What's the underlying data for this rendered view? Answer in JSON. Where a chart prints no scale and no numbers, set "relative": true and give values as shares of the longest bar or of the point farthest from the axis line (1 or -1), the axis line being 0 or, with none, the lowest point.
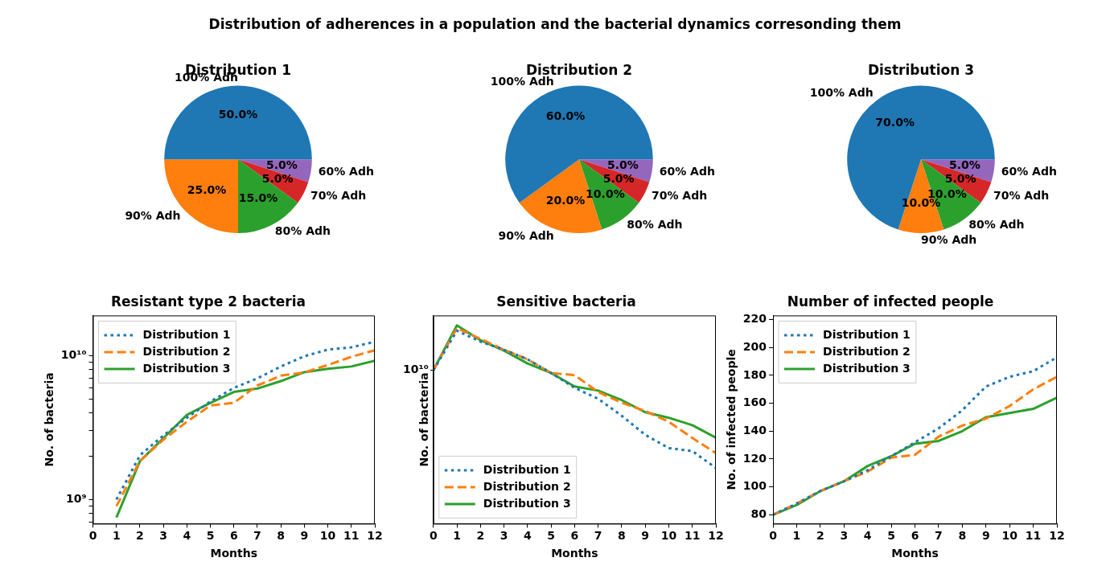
{
  "chart_data": [
    {
      "type": "other",
      "title": "Distribution of adherences in a population and the bacterial dynamics corresonding them"
    },
    {
      "type": "pie",
      "title": "Distribution 1",
      "categories": [
        "100% Adh",
        "90% Adh",
        "80% Adh",
        "70% Adh",
        "60% Adh"
      ],
      "values": [
        50,
        25,
        15,
        5,
        5
      ],
      "colors": [
        "#1f77b4",
        "#ff7f0e",
        "#2ca02c",
        "#d62728",
        "#9467bd"
      ],
      "value_labels": [
        "50.0%",
        "25.0%",
        "15.0%",
        "5.0%",
        "5.0%"
      ]
    },
    {
      "type": "pie",
      "title": "Distribution 2",
      "categories": [
        "100% Adh",
        "90% Adh",
        "80% Adh",
        "70% Adh",
        "60% Adh"
      ],
      "values": [
        60,
        20,
        10,
        5,
        5
      ],
      "colors": [
        "#1f77b4",
        "#ff7f0e",
        "#2ca02c",
        "#d62728",
        "#9467bd"
      ],
      "value_labels": [
        "60.0%",
        "20.0%",
        "10.0%",
        "5.0%",
        "5.0%"
      ]
    },
    {
      "type": "pie",
      "title": "Distribution 3",
      "categories": [
        "100% Adh",
        "90% Adh",
        "80% Adh",
        "70% Adh",
        "60% Adh"
      ],
      "values": [
        70,
        10,
        10,
        5,
        5
      ],
      "colors": [
        "#1f77b4",
        "#ff7f0e",
        "#2ca02c",
        "#d62728",
        "#9467bd"
      ],
      "value_labels": [
        "70.0%",
        "10.0%",
        "10.0%",
        "5.0%",
        "5.0%"
      ]
    },
    {
      "type": "line",
      "title": "Resistant type 2 bacteria",
      "xlabel": "Months",
      "ylabel": "No. of bacteria",
      "log": true,
      "x": [
        1,
        2,
        3,
        4,
        5,
        6,
        7,
        8,
        9,
        10,
        11,
        12
      ],
      "xlim": [
        0,
        12
      ],
      "xticks": [
        0,
        1,
        2,
        3,
        4,
        5,
        6,
        7,
        8,
        9,
        10,
        11,
        12
      ],
      "ylim": [
        680000000,
        19000000000
      ],
      "yticks": [
        {
          "value": 700000000,
          "label": null
        },
        {
          "value": 800000000,
          "label": null
        },
        {
          "value": 900000000,
          "label": null
        },
        {
          "value": 1000000000,
          "label": "10⁹"
        },
        {
          "value": 2000000000,
          "label": null
        },
        {
          "value": 3000000000,
          "label": null
        },
        {
          "value": 4000000000,
          "label": null
        },
        {
          "value": 5000000000,
          "label": null
        },
        {
          "value": 6000000000,
          "label": null
        },
        {
          "value": 7000000000,
          "label": null
        },
        {
          "value": 8000000000,
          "label": null
        },
        {
          "value": 9000000000,
          "label": null
        },
        {
          "value": 10000000000,
          "label": "10¹⁰"
        }
      ],
      "legend": "top left",
      "marker": "none",
      "series": [
        {
          "name": "Distribution 1",
          "color": "#1f77b4",
          "line_style": "dotted",
          "values": [
            1000000000,
            2030000000,
            2790000000,
            3700000000,
            4800000000,
            5960000000,
            6950000000,
            8400000000,
            9900000000,
            11000000000,
            11400000000,
            12500000000
          ]
        },
        {
          "name": "Distribution 2",
          "color": "#ff7f0e",
          "line_style": "dashed",
          "values": [
            900000000,
            1850000000,
            2610000000,
            3470000000,
            4500000000,
            4700000000,
            6200000000,
            7250000000,
            7640000000,
            8600000000,
            9800000000,
            10900000000
          ]
        },
        {
          "name": "Distribution 3",
          "color": "#2ca02c",
          "line_style": "solid",
          "values": [
            750000000,
            1850000000,
            2670000000,
            3870000000,
            4700000000,
            5590000000,
            5900000000,
            6650000000,
            7670000000,
            8100000000,
            8400000000,
            9200000000
          ]
        }
      ]
    },
    {
      "type": "line",
      "title": "Sensitive bacteria",
      "xlabel": "Months",
      "ylabel": "No. of bacteria",
      "relative": true,
      "x": [
        0,
        1,
        2,
        3,
        4,
        5,
        6,
        7,
        8,
        9,
        10,
        11,
        12
      ],
      "xlim": [
        0,
        12
      ],
      "xticks": [
        0,
        1,
        2,
        3,
        4,
        5,
        6,
        7,
        8,
        9,
        10,
        11,
        12
      ],
      "legend": "bottom left",
      "marker": "none",
      "annotations": [
        {
          "text": "10¹⁰",
          "x": 0,
          "y": 0.774
        }
      ],
      "series": [
        {
          "name": "Distribution 1",
          "color": "#1f77b4",
          "line_style": "dotted",
          "values": [
            0.774,
            0.973,
            0.918,
            0.877,
            0.829,
            0.76,
            0.685,
            0.63,
            0.544,
            0.448,
            0.381,
            0.366,
            0.281
          ]
        },
        {
          "name": "Distribution 2",
          "color": "#ff7f0e",
          "line_style": "dashed",
          "values": [
            0.774,
            0.986,
            0.932,
            0.877,
            0.829,
            0.76,
            0.749,
            0.664,
            0.61,
            0.568,
            0.514,
            0.432,
            0.356
          ]
        },
        {
          "name": "Distribution 3",
          "color": "#2ca02c",
          "line_style": "solid",
          "values": [
            0.774,
            1,
            0.925,
            0.873,
            0.808,
            0.76,
            0.692,
            0.671,
            0.623,
            0.562,
            0.534,
            0.497,
            0.434
          ]
        }
      ]
    },
    {
      "type": "line",
      "title": "Number of infected people",
      "xlabel": "Months",
      "ylabel": "No. of infected people",
      "x": [
        0,
        1,
        2,
        3,
        4,
        5,
        6,
        7,
        8,
        9,
        10,
        11,
        12
      ],
      "xlim": [
        0,
        12
      ],
      "xticks": [
        0,
        1,
        2,
        3,
        4,
        5,
        6,
        7,
        8,
        9,
        10,
        11,
        12
      ],
      "ylim": [
        73.6,
        223
      ],
      "yticks": [
        80,
        100,
        120,
        140,
        160,
        180,
        200,
        220
      ],
      "legend": "top left",
      "marker": "none",
      "series": [
        {
          "name": "Distribution 1",
          "color": "#1f77b4",
          "line_style": "dotted",
          "values": [
            80,
            88,
            97,
            104,
            112,
            122,
            132,
            142,
            155,
            172,
            179,
            183,
            193
          ]
        },
        {
          "name": "Distribution 2",
          "color": "#ff7f0e",
          "line_style": "dashed",
          "values": [
            80,
            88,
            97,
            104,
            111,
            121,
            123,
            136,
            144,
            149,
            158,
            170,
            179
          ]
        },
        {
          "name": "Distribution 3",
          "color": "#2ca02c",
          "line_style": "solid",
          "values": [
            80,
            87,
            97,
            104,
            115,
            122,
            131,
            133,
            140,
            150,
            153,
            156,
            164
          ]
        }
      ]
    }
  ]
}
